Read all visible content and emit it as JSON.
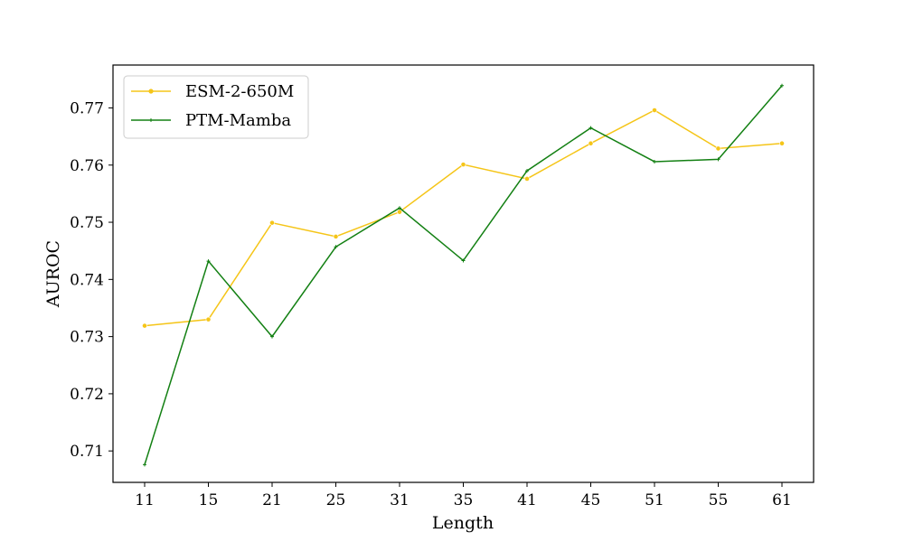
{
  "chart_data": {
    "type": "line",
    "title": "",
    "xlabel": "Length",
    "ylabel": "AUROC",
    "categories": [
      "11",
      "15",
      "21",
      "25",
      "31",
      "35",
      "41",
      "45",
      "51",
      "55",
      "61"
    ],
    "ylim": [
      0.7045,
      0.7775
    ],
    "yticks": [
      0.71,
      0.72,
      0.73,
      0.74,
      0.75,
      0.76,
      0.77
    ],
    "ytick_labels": [
      "0.71",
      "0.72",
      "0.73",
      "0.74",
      "0.75",
      "0.76",
      "0.77"
    ],
    "grid": false,
    "legend_position": "top-left",
    "series": [
      {
        "name": "ESM-2-650M",
        "color": "#f5c518",
        "marker": "dot",
        "values": [
          0.7319,
          0.733,
          0.7499,
          0.7475,
          0.7518,
          0.7601,
          0.7576,
          0.7638,
          0.7696,
          0.7629,
          0.7638
        ]
      },
      {
        "name": "PTM-Mamba",
        "color": "#138013",
        "marker": "plus",
        "values": [
          0.7076,
          0.7432,
          0.73,
          0.7457,
          0.7525,
          0.7433,
          0.759,
          0.7665,
          0.7606,
          0.761,
          0.7739
        ]
      }
    ]
  }
}
